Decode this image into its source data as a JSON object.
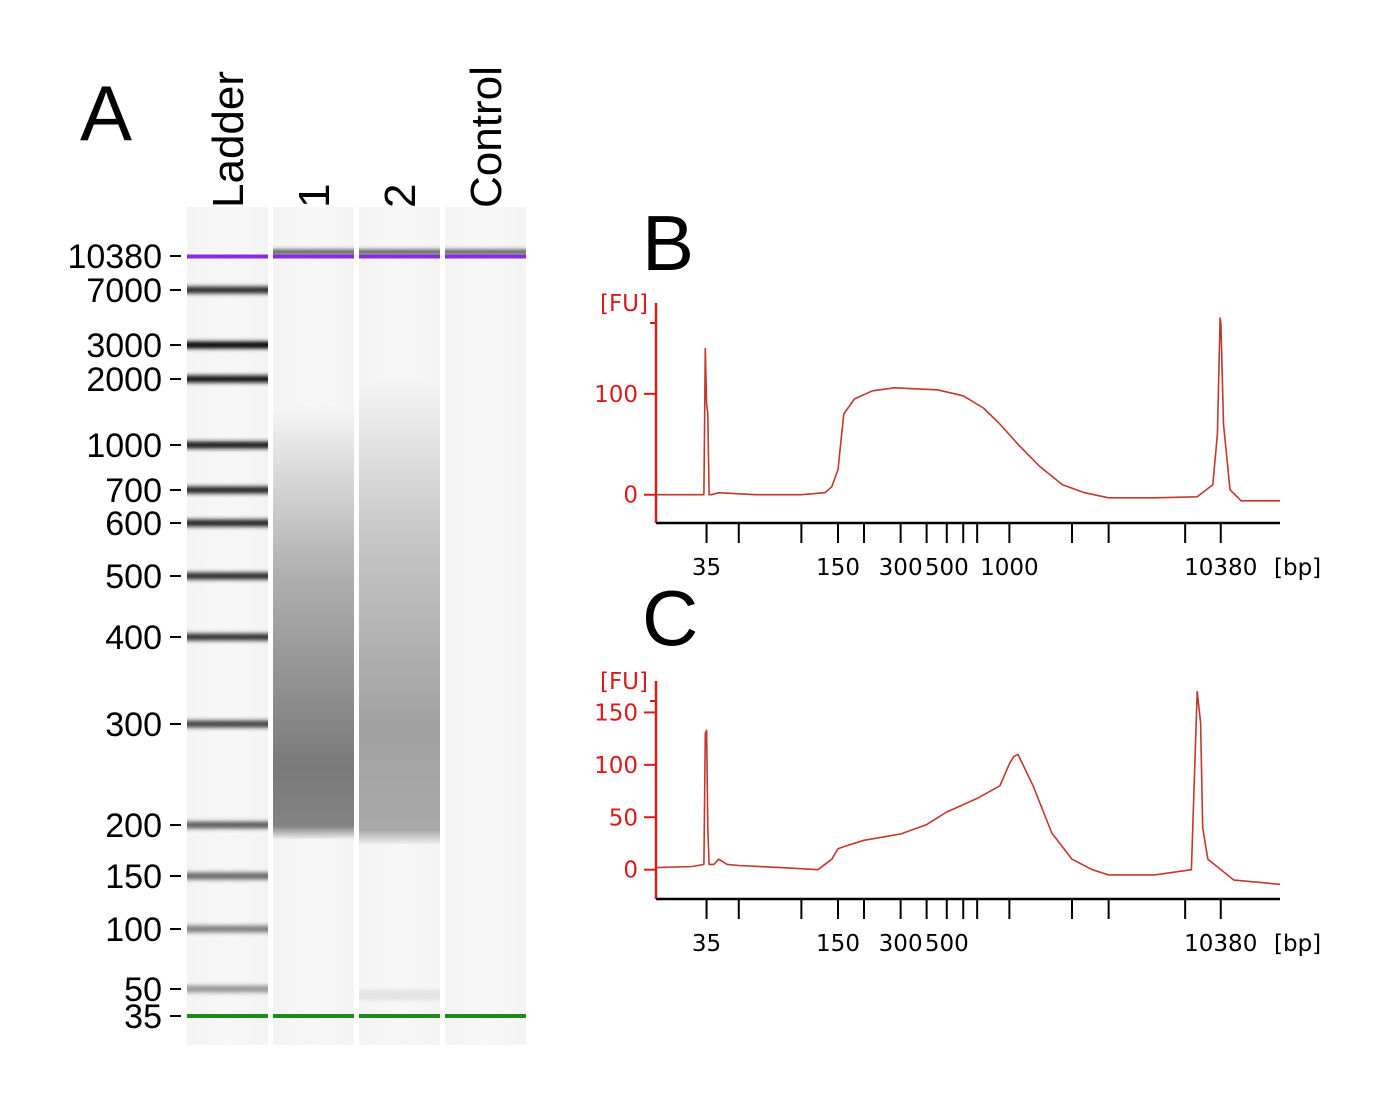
{
  "figure": {
    "panel_letters": [
      "A",
      "B",
      "C"
    ],
    "colors": {
      "upper_marker": "#8a2be2",
      "lower_marker": "#1b8a1b",
      "trace": "#c0392b",
      "axis": "#d81b1b"
    }
  },
  "chart_data": [
    {
      "type": "gel",
      "panel": "A",
      "lanes": [
        "Ladder",
        "1",
        "2",
        "Control"
      ],
      "size_labels_bp": [
        10380,
        7000,
        3000,
        2000,
        1000,
        700,
        600,
        500,
        400,
        300,
        200,
        150,
        100,
        50,
        35
      ],
      "upper_marker_bp": 10380,
      "lower_marker_bp": 35,
      "ladder_band_intensity": {
        "10380": 1.0,
        "7000": 0.82,
        "3000": 1.0,
        "2000": 0.95,
        "1000": 0.9,
        "700": 0.85,
        "600": 0.85,
        "500": 0.82,
        "400": 0.78,
        "300": 0.72,
        "200": 0.6,
        "150": 0.55,
        "100": 0.45,
        "50": 0.35,
        "35": 1.0
      },
      "smear": [
        {
          "lane": "1",
          "from_bp": 1500,
          "to_bp": 185,
          "peak_bp": 250,
          "max_darkness": 0.62
        },
        {
          "lane": "2",
          "from_bp": 2000,
          "to_bp": 180,
          "peak_bp": 300,
          "max_darkness": 0.42
        }
      ]
    },
    {
      "type": "line",
      "panel": "B",
      "y_label": "[FU]",
      "x_unit_label": "[bp]",
      "y_ticks": [
        0,
        100
      ],
      "ylim": [
        -28,
        190
      ],
      "x_tick_labels": [
        "35",
        "150",
        "300",
        "500",
        "1000",
        "10380"
      ],
      "x_label_positions": [
        35,
        150,
        300,
        500,
        1000,
        10380
      ],
      "x_scale": "log",
      "xlim": [
        20,
        20000
      ],
      "x": [
        20,
        34,
        34.5,
        35,
        35.5,
        36,
        37,
        40,
        60,
        100,
        130,
        140,
        150,
        160,
        180,
        220,
        280,
        350,
        450,
        600,
        750,
        900,
        1100,
        1400,
        1800,
        2300,
        3000,
        5000,
        8000,
        9500,
        10000,
        10300,
        10400,
        10700,
        11500,
        13000,
        20000
      ],
      "y": [
        0,
        0,
        145,
        90,
        80,
        0,
        0,
        2,
        0,
        0,
        2,
        8,
        25,
        80,
        95,
        103,
        106,
        105,
        104,
        98,
        86,
        70,
        50,
        28,
        10,
        2,
        -3,
        -3,
        -2,
        10,
        60,
        175,
        170,
        70,
        5,
        -6,
        -6
      ]
    },
    {
      "type": "line",
      "panel": "C",
      "y_label": "[FU]",
      "x_unit_label": "[bp]",
      "y_ticks": [
        0,
        50,
        100,
        150
      ],
      "ylim": [
        -28,
        180
      ],
      "x_tick_labels": [
        "35",
        "150",
        "300",
        "500",
        "10380"
      ],
      "x_label_positions": [
        35,
        150,
        300,
        500,
        10380
      ],
      "x_scale": "log",
      "xlim": [
        20,
        20000
      ],
      "x": [
        20,
        30,
        34,
        34.5,
        35,
        35.5,
        36,
        38,
        40,
        44,
        50,
        80,
        120,
        140,
        150,
        160,
        200,
        300,
        400,
        500,
        700,
        900,
        1000,
        1050,
        1100,
        1300,
        1600,
        2000,
        2500,
        3000,
        5000,
        7500,
        8000,
        8300,
        8500,
        9000,
        12000,
        20000
      ],
      "y": [
        2,
        3,
        5,
        130,
        133,
        40,
        5,
        5,
        10,
        5,
        4,
        2,
        0,
        10,
        20,
        22,
        28,
        34,
        43,
        55,
        68,
        80,
        101,
        108,
        110,
        80,
        35,
        10,
        0,
        -5,
        -5,
        0,
        170,
        140,
        40,
        10,
        -10,
        -14
      ]
    }
  ]
}
